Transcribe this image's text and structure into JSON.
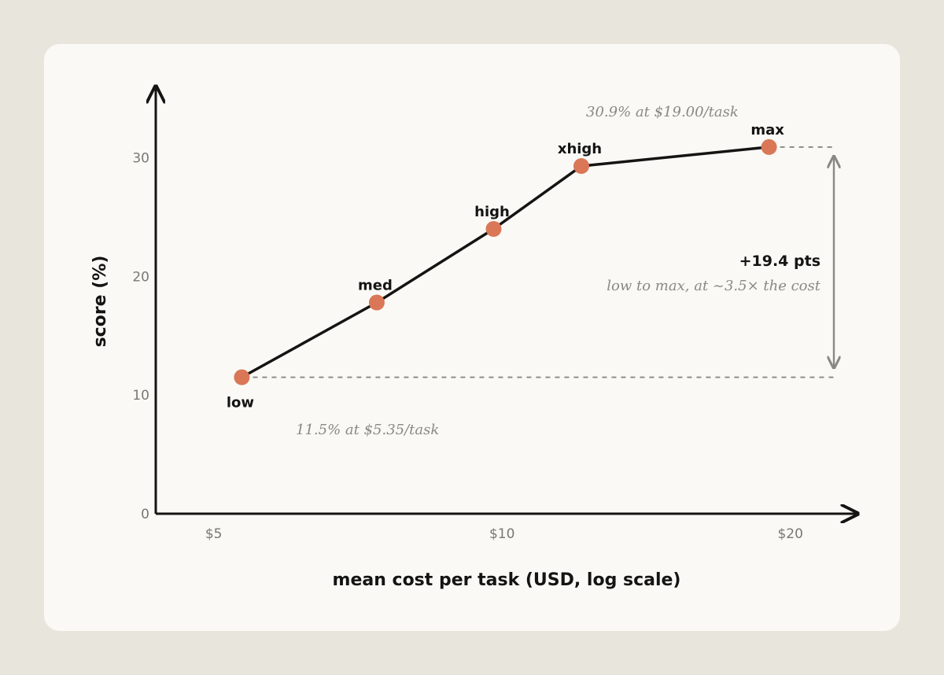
{
  "chart_data": {
    "type": "line",
    "title": "",
    "xlabel": "mean cost per task (USD, log scale)",
    "ylabel": "score (%)",
    "x_scale": "log",
    "xlim": [
      4.35,
      23.5
    ],
    "ylim": [
      0,
      36
    ],
    "x_ticks": [
      {
        "value": 5,
        "label": "$5"
      },
      {
        "value": 10,
        "label": "$10"
      },
      {
        "value": 20,
        "label": "$20"
      }
    ],
    "y_ticks": [
      {
        "value": 0,
        "label": "0"
      },
      {
        "value": 10,
        "label": "10"
      },
      {
        "value": 20,
        "label": "20"
      },
      {
        "value": 30,
        "label": "30"
      }
    ],
    "grid": false,
    "legend": "none",
    "series": [
      {
        "points": [
          {
            "label": "low",
            "x": 5.35,
            "y": 11.5
          },
          {
            "label": "med",
            "x": 7.4,
            "y": 17.8
          },
          {
            "label": "high",
            "x": 9.8,
            "y": 24.0
          },
          {
            "label": "xhigh",
            "x": 12.1,
            "y": 29.3
          },
          {
            "label": "max",
            "x": 19.0,
            "y": 30.9
          }
        ]
      }
    ],
    "annotations": {
      "low_note": "11.5% at $5.35/task",
      "max_note": "30.9% at $19.00/task",
      "delta_main": "+19.4 pts",
      "delta_sub": "low to max, at ~3.5× the cost"
    },
    "colors": {
      "line": "#141413",
      "marker": "#d97757",
      "reference_line": "#8a8883",
      "axis": "#141413"
    }
  }
}
